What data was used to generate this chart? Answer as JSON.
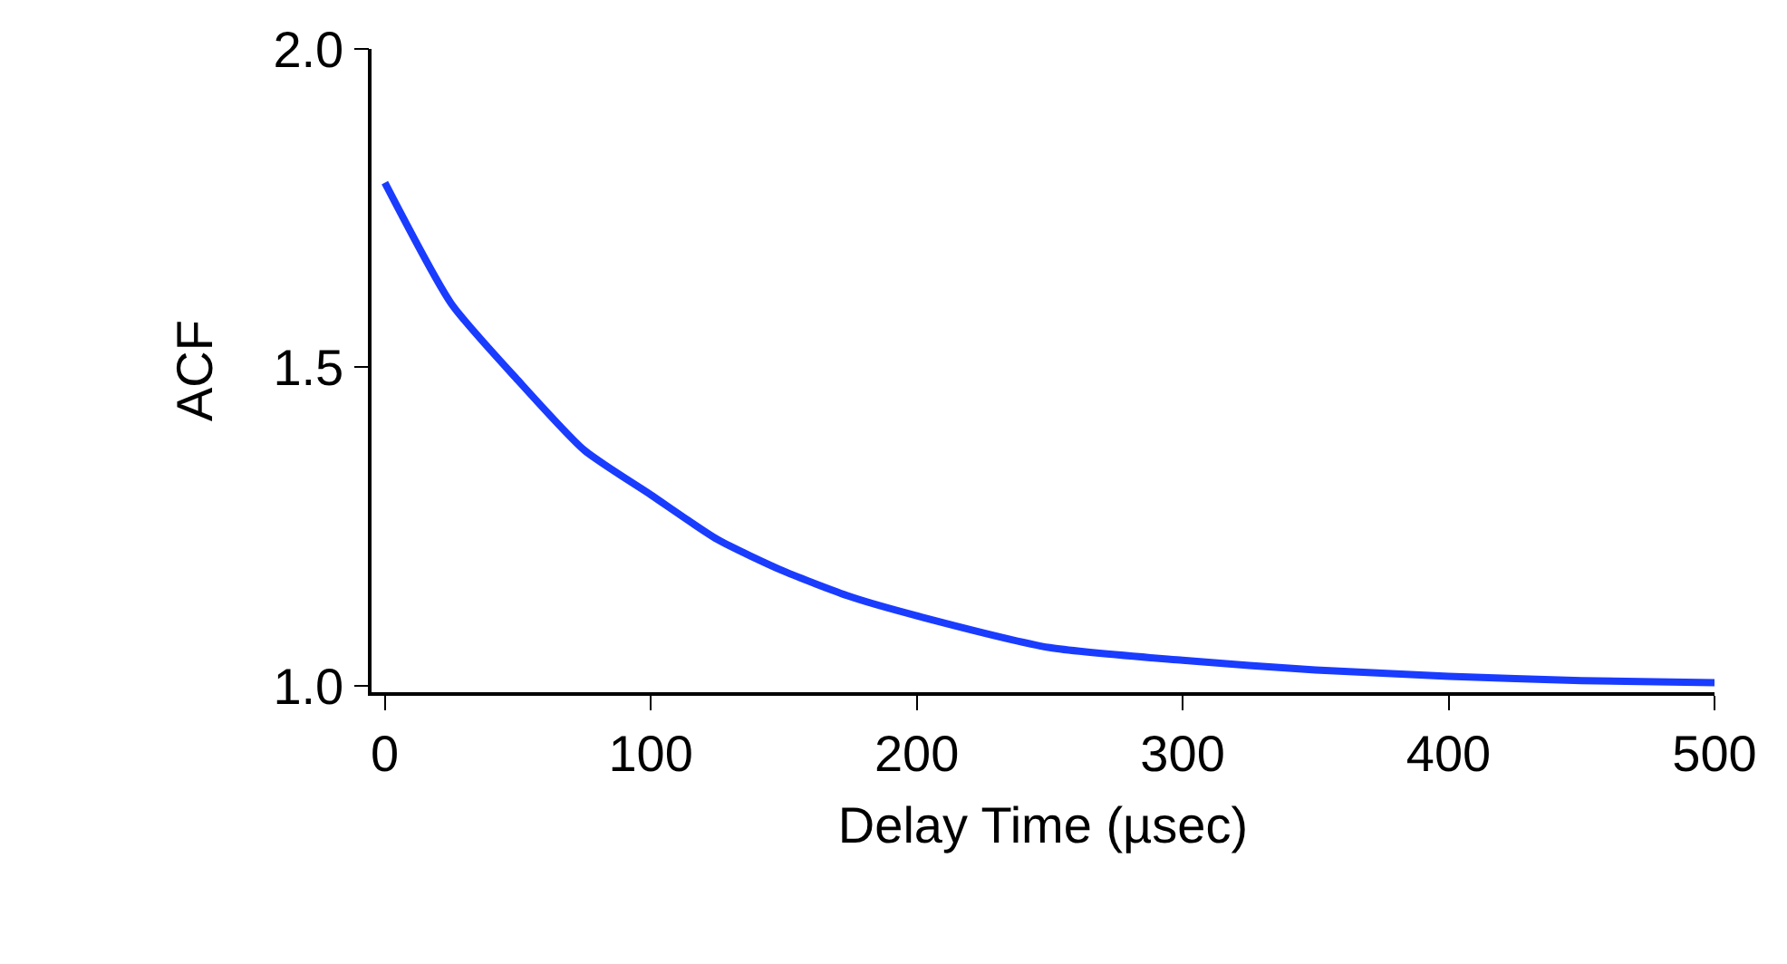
{
  "chart_data": {
    "type": "line",
    "xlabel": "Delay Time (µsec)",
    "ylabel": "ACF",
    "x": [
      0,
      25,
      50,
      75,
      100,
      125,
      150,
      175,
      200,
      250,
      300,
      350,
      400,
      450,
      500
    ],
    "series": [
      {
        "color": "#1a3cff",
        "values": [
          1.79,
          1.6,
          1.48,
          1.37,
          1.3,
          1.23,
          1.18,
          1.14,
          1.11,
          1.06,
          1.04,
          1.025,
          1.015,
          1.008,
          1.005
        ]
      }
    ],
    "xlim": [
      -5,
      500
    ],
    "ylim": [
      0.99,
      2.0
    ],
    "xticks": [
      0,
      100,
      200,
      300,
      400,
      500
    ],
    "yticks": [
      {
        "value": 1,
        "label": "1.0"
      },
      1.5,
      {
        "value": 2,
        "label": "2.0"
      }
    ],
    "marker": "none",
    "line_style": "solid"
  }
}
